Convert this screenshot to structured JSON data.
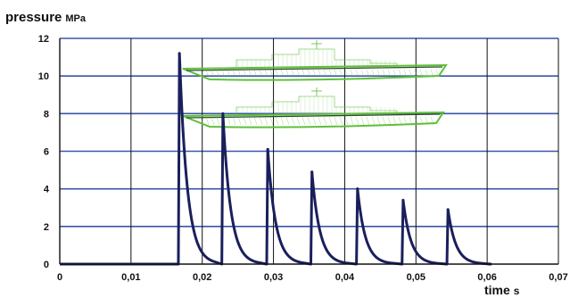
{
  "chart_data": {
    "type": "line",
    "ylabel": "pressure",
    "ylabel_unit": "MPa",
    "xlabel": "time",
    "xlabel_unit": "s",
    "xlim": [
      0,
      0.07
    ],
    "ylim": [
      0,
      12
    ],
    "x_ticks": [
      0,
      0.01,
      0.02,
      0.03,
      0.04,
      0.05,
      0.06,
      0.07
    ],
    "x_tick_labels": [
      "0",
      "0,01",
      "0,02",
      "0,03",
      "0,04",
      "0,05",
      "0,06",
      "0,07"
    ],
    "y_ticks": [
      0,
      2,
      4,
      6,
      8,
      10,
      12
    ],
    "y_tick_labels": [
      "0",
      "2",
      "4",
      "6",
      "8",
      "10",
      "12"
    ],
    "grid": true,
    "series": [
      {
        "line_color": "#1a1f5c",
        "pulses": [
          {
            "t": 0.0168,
            "peak": 11.2
          },
          {
            "t": 0.0229,
            "peak": 8.0
          },
          {
            "t": 0.0292,
            "peak": 6.1
          },
          {
            "t": 0.0354,
            "peak": 4.9
          },
          {
            "t": 0.0418,
            "peak": 4.0
          },
          {
            "t": 0.0482,
            "peak": 3.4
          },
          {
            "t": 0.0545,
            "peak": 2.9
          }
        ]
      }
    ],
    "inset_pictures": [
      {
        "icon": "ship-wireframe-icon",
        "color": "#5fbf3a"
      },
      {
        "icon": "ship-wireframe-icon",
        "color": "#5fbf3a"
      }
    ]
  }
}
